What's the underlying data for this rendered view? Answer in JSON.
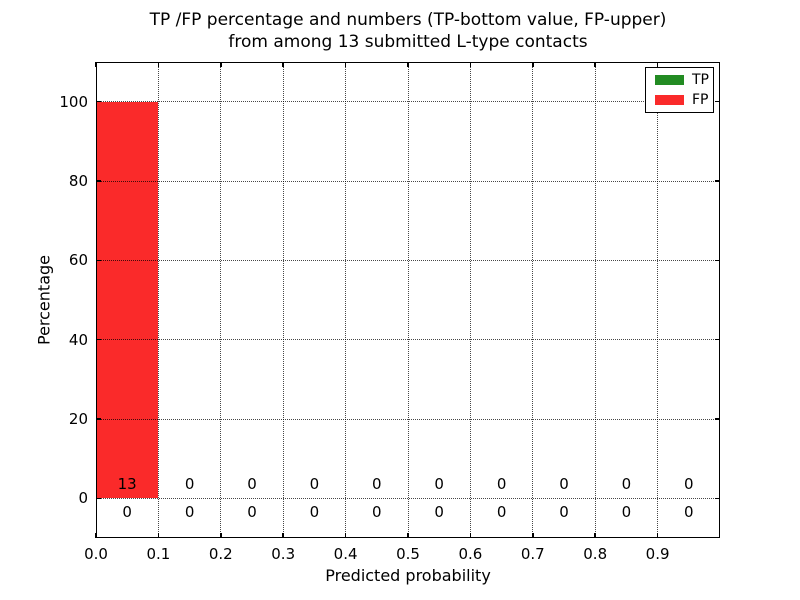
{
  "chart_data": {
    "type": "bar",
    "title": "TP /FP percentage and numbers (TP-bottom value, FP-upper)\nfrom among 13 submitted L-type contacts",
    "xlabel": "Predicted probability",
    "ylabel": "Percentage",
    "xlim": [
      0.0,
      1.0
    ],
    "ylim": [
      -10,
      110
    ],
    "xticks": [
      0.0,
      0.1,
      0.2,
      0.3,
      0.4,
      0.5,
      0.6,
      0.7,
      0.8,
      0.9
    ],
    "xtick_labels": [
      "0.0",
      "0.1",
      "0.2",
      "0.3",
      "0.4",
      "0.5",
      "0.6",
      "0.7",
      "0.8",
      "0.9"
    ],
    "yticks": [
      0,
      20,
      40,
      60,
      80,
      100
    ],
    "ytick_labels": [
      "0",
      "20",
      "40",
      "60",
      "80",
      "100"
    ],
    "bin_starts": [
      0.0,
      0.1,
      0.2,
      0.3,
      0.4,
      0.5,
      0.6,
      0.7,
      0.8,
      0.9
    ],
    "bin_width": 0.1,
    "grid": true,
    "legend": {
      "position": "upper right",
      "entries": [
        {
          "label": "TP",
          "color": "#228b22"
        },
        {
          "label": "FP",
          "color": "#fa2a2a"
        }
      ]
    },
    "series": [
      {
        "name": "TP",
        "color": "#228b22",
        "stack_order": "bottom",
        "percent_values": [
          0,
          0,
          0,
          0,
          0,
          0,
          0,
          0,
          0,
          0
        ],
        "counts": [
          0,
          0,
          0,
          0,
          0,
          0,
          0,
          0,
          0,
          0
        ],
        "count_label_row": "lower"
      },
      {
        "name": "FP",
        "color": "#fa2a2a",
        "stack_order": "top",
        "percent_values": [
          100,
          0,
          0,
          0,
          0,
          0,
          0,
          0,
          0,
          0
        ],
        "counts": [
          13,
          0,
          0,
          0,
          0,
          0,
          0,
          0,
          0,
          0
        ],
        "count_label_row": "upper"
      }
    ]
  }
}
